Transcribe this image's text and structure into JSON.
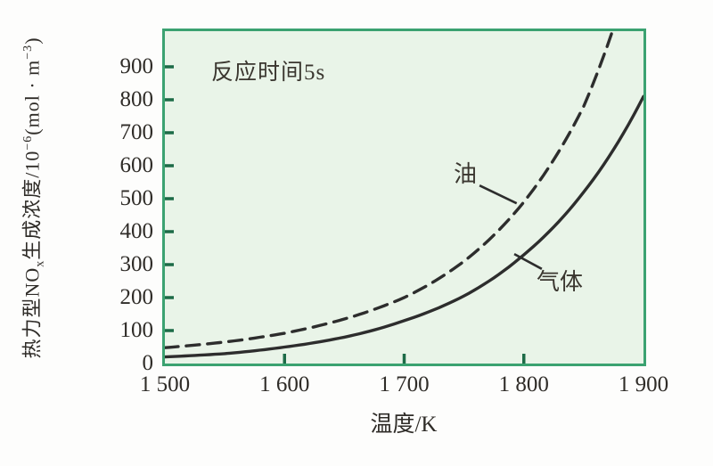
{
  "chart_data": {
    "type": "line",
    "title_annotation": "反应时间5s",
    "xlabel": "温度/K",
    "ylabel_parts": {
      "p1": "热力型NO",
      "p1sub": "x",
      "p2": "生成浓度/10",
      "p2sup": "−6",
      "p3": "(mol · m",
      "p3sup": "−3",
      "p4": ")"
    },
    "xlim": [
      1500,
      1900
    ],
    "ylim": [
      0,
      1008
    ],
    "grid": false,
    "legend": "inline-labels-with-leader-lines",
    "x_ticks": [
      {
        "value": 1500,
        "label": "1 500"
      },
      {
        "value": 1600,
        "label": "1 600"
      },
      {
        "value": 1700,
        "label": "1 700"
      },
      {
        "value": 1800,
        "label": "1 800"
      },
      {
        "value": 1900,
        "label": "1 900"
      }
    ],
    "y_ticks": [
      {
        "value": 0,
        "label": "0"
      },
      {
        "value": 100,
        "label": "100"
      },
      {
        "value": 200,
        "label": "200"
      },
      {
        "value": 300,
        "label": "300"
      },
      {
        "value": 400,
        "label": "400"
      },
      {
        "value": 500,
        "label": "500"
      },
      {
        "value": 600,
        "label": "600"
      },
      {
        "value": 700,
        "label": "700"
      },
      {
        "value": 800,
        "label": "800"
      },
      {
        "value": 900,
        "label": "900"
      }
    ],
    "series": [
      {
        "name": "气体",
        "style": "solid",
        "points": [
          [
            1500,
            20
          ],
          [
            1550,
            30
          ],
          [
            1600,
            50
          ],
          [
            1650,
            80
          ],
          [
            1700,
            130
          ],
          [
            1750,
            205
          ],
          [
            1800,
            330
          ],
          [
            1850,
            520
          ],
          [
            1900,
            810
          ]
        ]
      },
      {
        "name": "油",
        "style": "dashed",
        "points": [
          [
            1500,
            48
          ],
          [
            1550,
            65
          ],
          [
            1600,
            92
          ],
          [
            1650,
            135
          ],
          [
            1700,
            200
          ],
          [
            1750,
            310
          ],
          [
            1800,
            490
          ],
          [
            1850,
            780
          ],
          [
            1876,
            1030
          ]
        ]
      }
    ],
    "annotations": [
      {
        "text": "油",
        "line_from": [
          1763,
          540
        ],
        "line_to": [
          1794,
          486
        ],
        "text_pos": [
          1751,
          575
        ]
      },
      {
        "text": "气体",
        "line_from": [
          1792,
          332
        ],
        "line_to": [
          1815,
          287
        ],
        "text_pos": [
          1830,
          248
        ]
      }
    ],
    "colors": {
      "plot_background": "#e9f4e8",
      "plot_border": "#3ba271",
      "tick_mark": "#1d6b47",
      "curve": "#2d2d2d",
      "text": "#2f2c28",
      "page_background": "#fdfdfc"
    }
  }
}
